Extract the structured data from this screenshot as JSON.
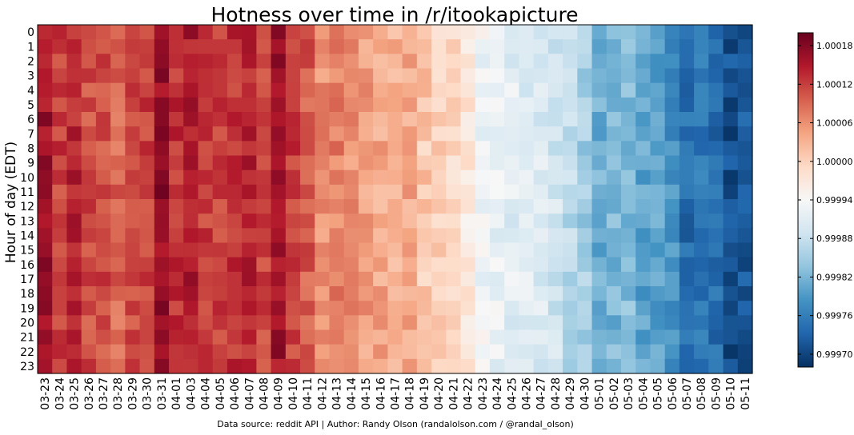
{
  "chart_data": {
    "type": "heatmap",
    "title": "Hotness over time in /r/itookapicture",
    "ylabel": "Hour of day (EDT)",
    "xlabel": "",
    "x_categories": [
      "03-23",
      "03-24",
      "03-25",
      "03-26",
      "03-27",
      "03-28",
      "03-29",
      "03-30",
      "03-31",
      "04-01",
      "04-03",
      "04-04",
      "04-05",
      "04-06",
      "04-07",
      "04-08",
      "04-09",
      "04-10",
      "04-11",
      "04-12",
      "04-13",
      "04-14",
      "04-15",
      "04-16",
      "04-17",
      "04-18",
      "04-19",
      "04-20",
      "04-21",
      "04-22",
      "04-23",
      "04-24",
      "04-25",
      "04-26",
      "04-27",
      "04-28",
      "04-29",
      "04-30",
      "05-01",
      "05-02",
      "05-03",
      "05-04",
      "05-05",
      "05-06",
      "05-07",
      "05-08",
      "05-09",
      "05-10",
      "05-11"
    ],
    "y_categories": [
      "0",
      "1",
      "2",
      "3",
      "4",
      "5",
      "6",
      "7",
      "8",
      "9",
      "10",
      "11",
      "12",
      "13",
      "14",
      "15",
      "16",
      "17",
      "18",
      "19",
      "20",
      "21",
      "22",
      "23"
    ],
    "colormap": "RdBu_r",
    "vmin": 0.99968,
    "vmax": 1.0002,
    "colorbar_ticks": [
      "1.00018",
      "1.00012",
      "1.00006",
      "1.00000",
      "0.99994",
      "0.99988",
      "0.99982",
      "0.99976",
      "0.99970"
    ],
    "colorbar_tick_values": [
      1.00018,
      1.00012,
      1.00006,
      1.0,
      0.99994,
      0.99988,
      0.99982,
      0.99976,
      0.9997
    ],
    "column_baseline": [
      1.00016,
      1.00012,
      1.00014,
      1.00011,
      1.00011,
      1.00009,
      1.00011,
      1.00012,
      1.00017,
      1.00013,
      1.00015,
      1.00012,
      1.00012,
      1.00013,
      1.00014,
      1.00011,
      1.00016,
      1.00012,
      1.0001,
      1.00006,
      1.00007,
      1.00006,
      1.00005,
      1.00004,
      1.00003,
      1.00004,
      1.00001,
      1.0,
      0.99999,
      0.99997,
      0.99993,
      0.99992,
      0.99991,
      0.99991,
      0.9999,
      0.99989,
      0.99987,
      0.99985,
      0.99981,
      0.99982,
      0.99983,
      0.9998,
      0.9998,
      0.99978,
      0.99974,
      0.99975,
      0.99974,
      0.99971,
      0.99972
    ],
    "colors": {
      "cmap_stops": [
        "#053061",
        "#2166ac",
        "#4393c3",
        "#92c5de",
        "#d1e5f0",
        "#f7f7f7",
        "#fddbc7",
        "#f4a582",
        "#d6604d",
        "#b2182b",
        "#67001f"
      ],
      "frame": "#000000",
      "background": "#ffffff"
    }
  },
  "footer": {
    "credit": "Data source: reddit API | Author: Randy Olson (randalolson.com / @randal_olson)"
  }
}
